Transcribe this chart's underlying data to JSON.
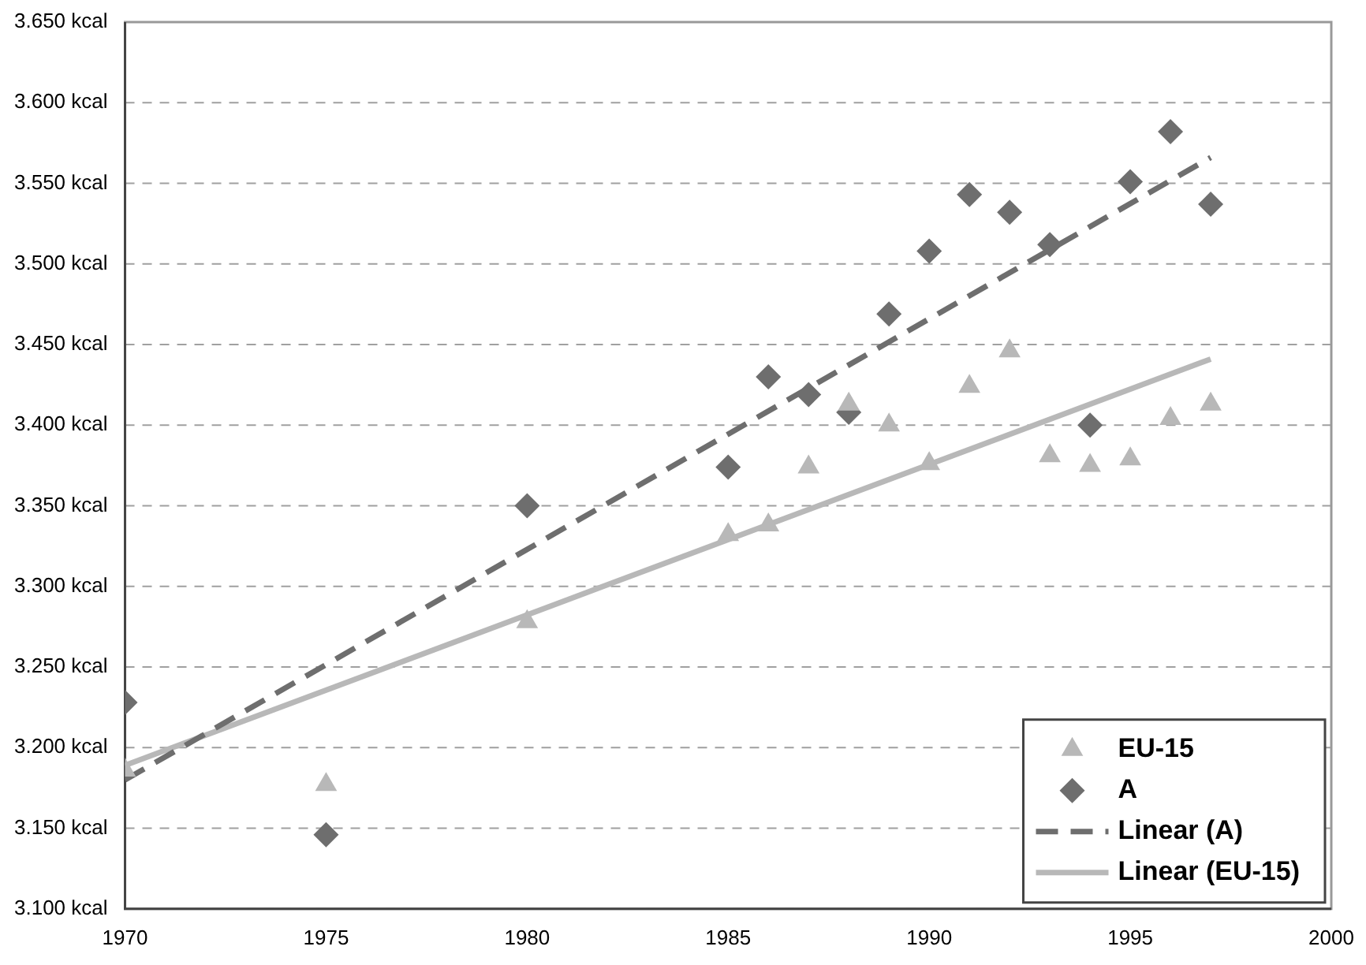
{
  "chart_data": {
    "type": "scatter",
    "xlim": [
      1970,
      2000
    ],
    "xticks": [
      1970,
      1975,
      1980,
      1985,
      1990,
      1995,
      2000
    ],
    "ylim": [
      3.1,
      3.65
    ],
    "yticks": [
      {
        "value": 3.1,
        "label": "3.100 kcal"
      },
      {
        "value": 3.15,
        "label": "3.150 kcal"
      },
      {
        "value": 3.2,
        "label": "3.200 kcal"
      },
      {
        "value": 3.25,
        "label": "3.250 kcal"
      },
      {
        "value": 3.3,
        "label": "3.300 kcal"
      },
      {
        "value": 3.35,
        "label": "3.350 kcal"
      },
      {
        "value": 3.4,
        "label": "3.400 kcal"
      },
      {
        "value": 3.45,
        "label": "3.450 kcal"
      },
      {
        "value": 3.5,
        "label": "3.500 kcal"
      },
      {
        "value": 3.55,
        "label": "3.550 kcal"
      },
      {
        "value": 3.6,
        "label": "3.600 kcal"
      },
      {
        "value": 3.65,
        "label": "3.650 kcal"
      }
    ],
    "grid": "y",
    "legend": "bottom right",
    "series": [
      {
        "name": "EU-15",
        "type": "scatter",
        "marker": "triangle",
        "color": "#b8b8b8",
        "x": [
          1970,
          1975,
          1980,
          1985,
          1986,
          1987,
          1988,
          1989,
          1990,
          1991,
          1992,
          1993,
          1994,
          1995,
          1996,
          1997
        ],
        "values": [
          3.186,
          3.177,
          3.278,
          3.332,
          3.338,
          3.374,
          3.413,
          3.4,
          3.376,
          3.424,
          3.446,
          3.381,
          3.375,
          3.379,
          3.404,
          3.413
        ]
      },
      {
        "name": "A",
        "type": "scatter",
        "marker": "diamond",
        "color": "#6e6e6e",
        "x": [
          1970,
          1975,
          1980,
          1985,
          1986,
          1987,
          1988,
          1989,
          1990,
          1991,
          1992,
          1993,
          1994,
          1995,
          1996,
          1997
        ],
        "values": [
          3.228,
          3.146,
          3.35,
          3.374,
          3.43,
          3.419,
          3.408,
          3.469,
          3.508,
          3.543,
          3.532,
          3.512,
          3.4,
          3.551,
          3.582,
          3.537
        ]
      },
      {
        "name": "Linear (A)",
        "type": "line",
        "marker": "none",
        "line_style": "dashed",
        "color": "#6e6e6e",
        "x": [
          1970,
          1997
        ],
        "values": [
          3.18,
          3.566
        ]
      },
      {
        "name": "Linear (EU-15)",
        "type": "line",
        "marker": "none",
        "line_style": "solid",
        "color": "#b8b8b8",
        "x": [
          1970,
          1997
        ],
        "values": [
          3.189,
          3.441
        ]
      }
    ]
  }
}
